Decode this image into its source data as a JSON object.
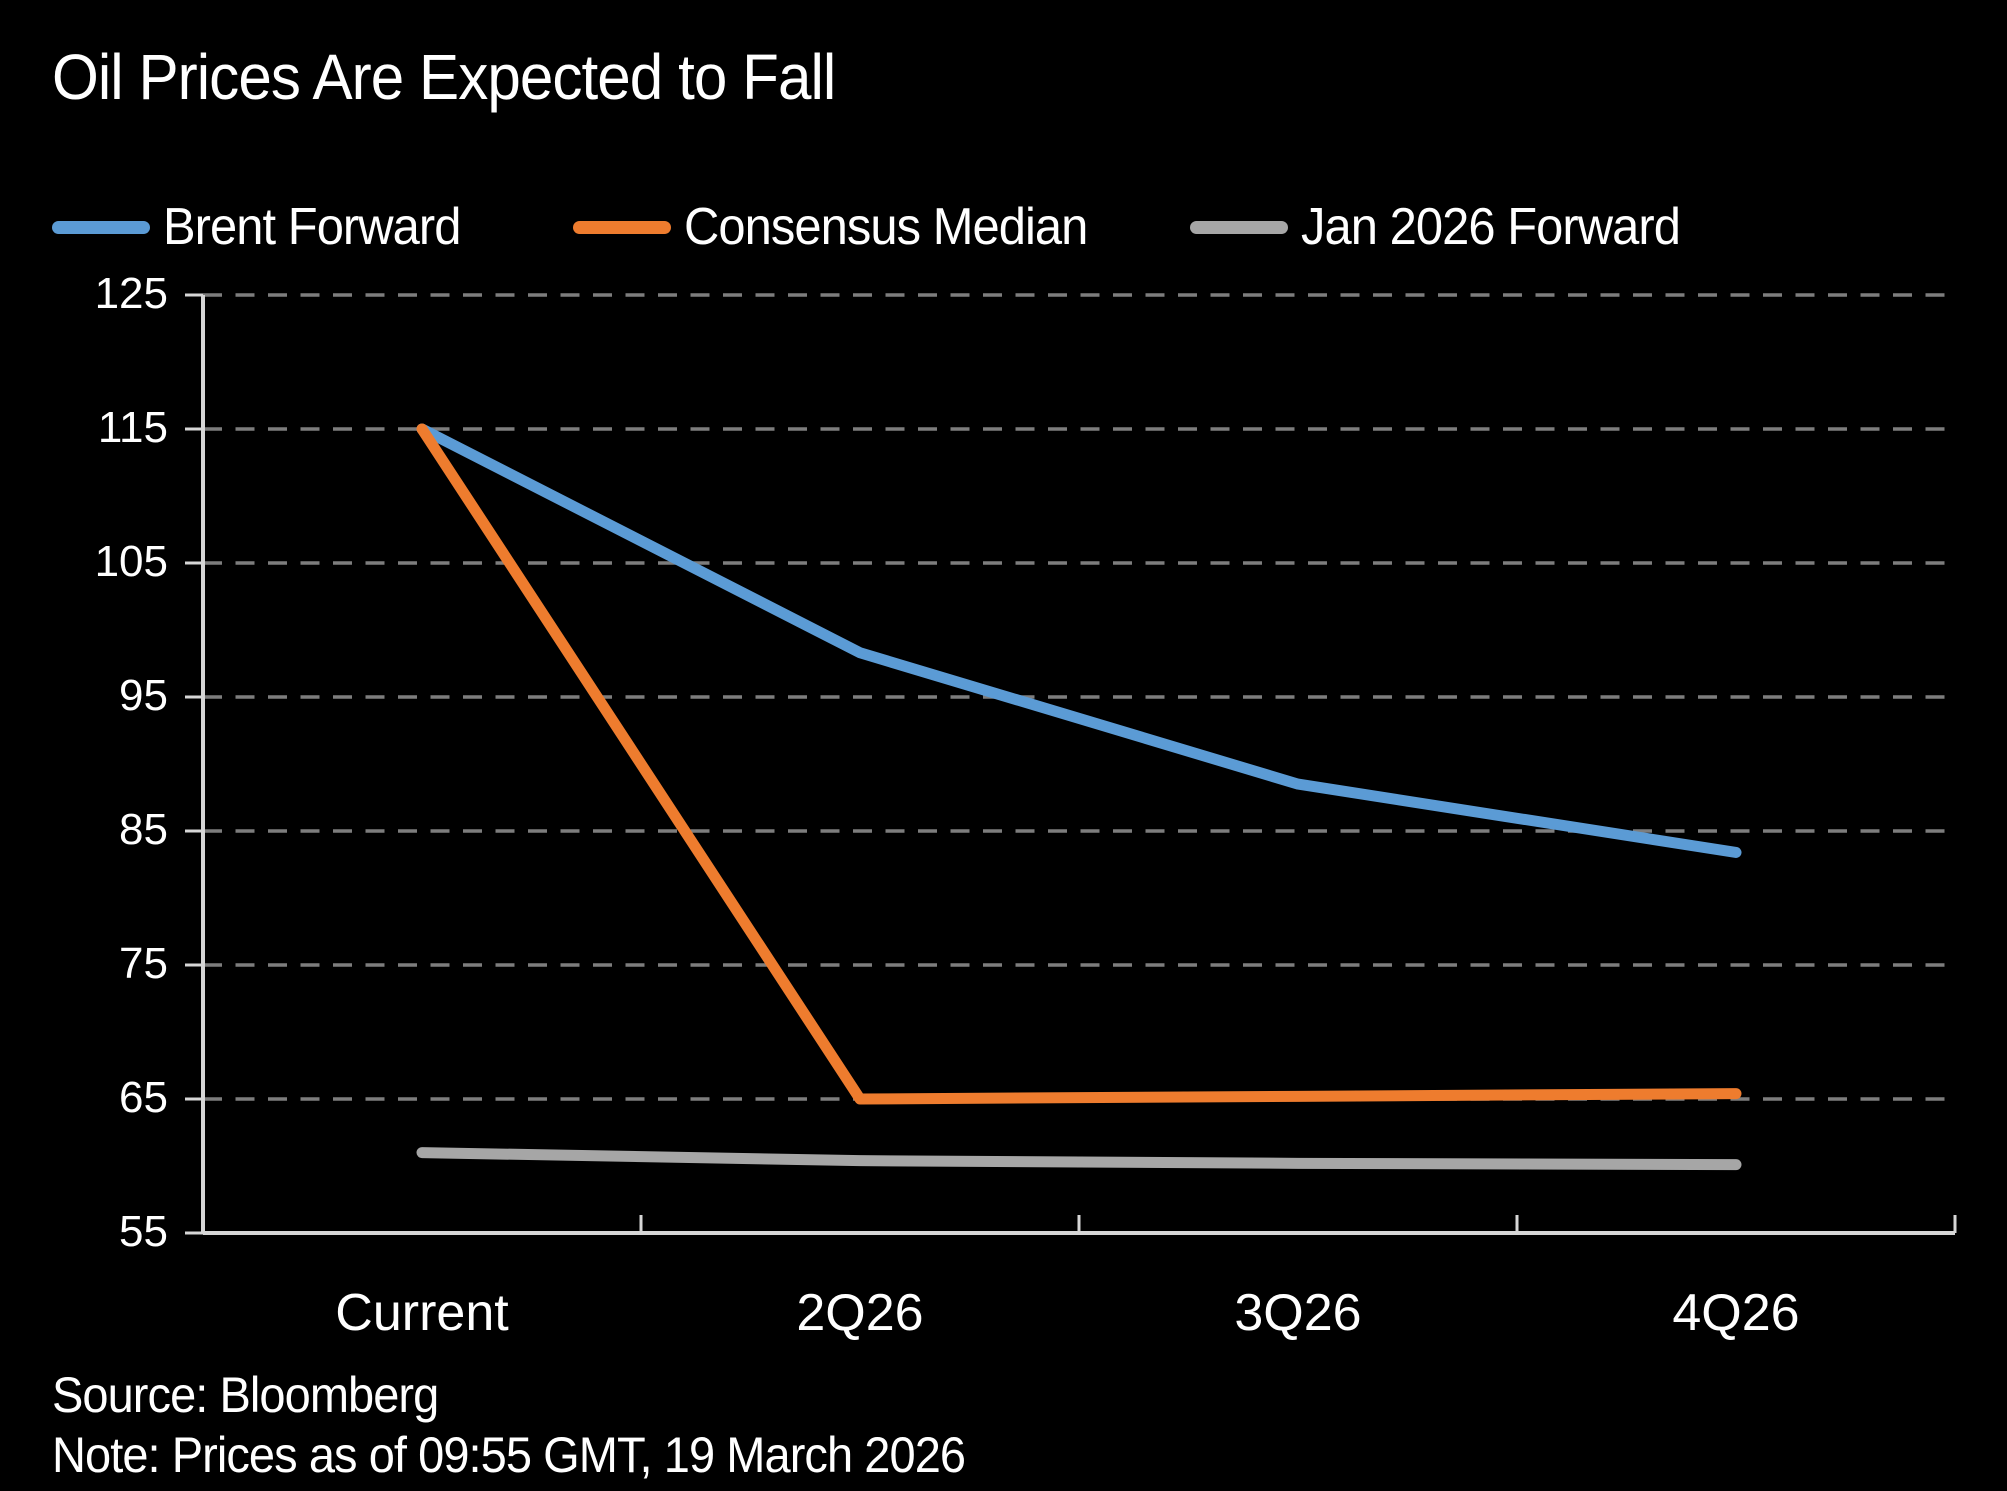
{
  "page": {
    "title": "Oil Prices Are Expected to Fall",
    "source": "Source: Bloomberg",
    "note": "Note: Prices as of 09:55 GMT, 19 March 2026"
  },
  "colors": {
    "background": "#000000",
    "text": "#ffffff",
    "axis": "#d6d6d6",
    "gridline": "#7d7d7d",
    "brent_blue": "#5b9bd5",
    "consensus_orange": "#ee7c2e",
    "forward_gray": "#a6a6a6"
  },
  "legend": {
    "items": [
      {
        "label": "Brent Forward",
        "color": "#5b9bd5"
      },
      {
        "label": "Consensus Median",
        "color": "#ee7c2e"
      },
      {
        "label": "Jan 2026 Forward",
        "color": "#a6a6a6"
      }
    ]
  },
  "chart_data": {
    "type": "line",
    "categories": [
      "Current",
      "2Q26",
      "3Q26",
      "4Q26"
    ],
    "series": [
      {
        "name": "Brent Forward",
        "color": "#5b9bd5",
        "values": [
          115,
          98.3,
          88.5,
          83.4
        ]
      },
      {
        "name": "Consensus Median",
        "color": "#ee7c2e",
        "values": [
          115,
          65,
          65.2,
          65.4
        ]
      },
      {
        "name": "Jan 2026 Forward",
        "color": "#a6a6a6",
        "values": [
          61,
          60.4,
          60.2,
          60.1
        ]
      }
    ],
    "ylim": [
      55,
      125
    ],
    "yticks": [
      55,
      65,
      75,
      85,
      95,
      105,
      115,
      125
    ],
    "xlabel": "",
    "ylabel": "",
    "grid": "horizontal-dashed",
    "legend_position": "top"
  }
}
